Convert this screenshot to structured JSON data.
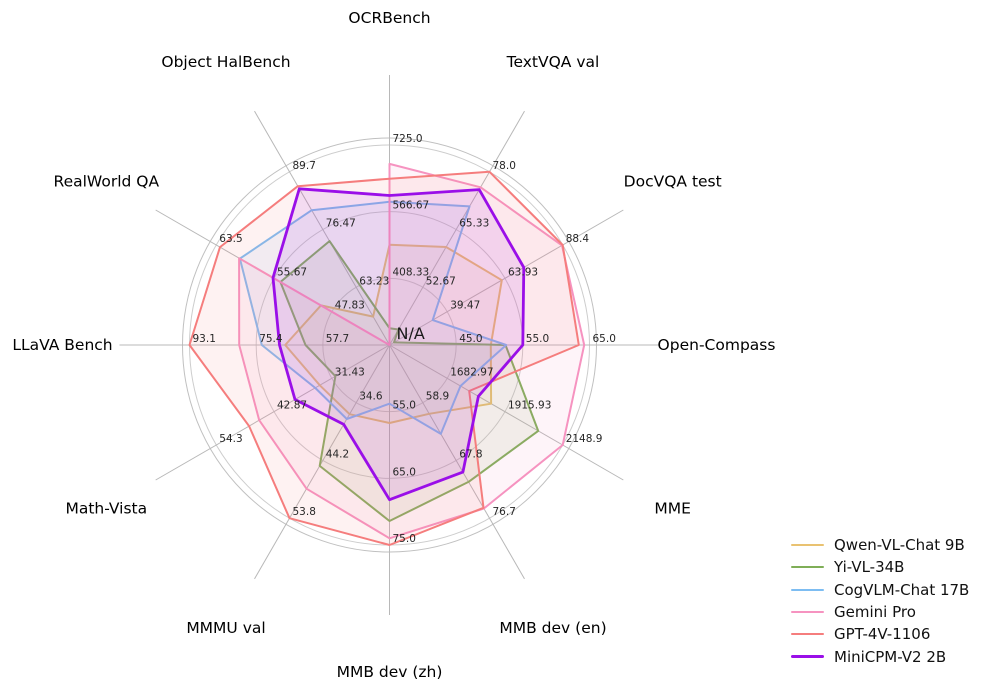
{
  "figure": {
    "background": "#ffffff",
    "grid_ring_color": "#cdcdcd",
    "spine_color": "#c0c0c0",
    "spoke_color": "#b8b8b8",
    "tick_label_color": "#262626",
    "axis_label_color": "#000000"
  },
  "chart_data": {
    "type": "radar",
    "title": "",
    "na_label": "N/A",
    "legend_position": "bottom-right",
    "rings_per_axis": 3,
    "axes": [
      {
        "label": "OCRBench",
        "ticks": [
          "408.33",
          "566.67",
          "725.0"
        ]
      },
      {
        "label": "TextVQA val",
        "ticks": [
          "52.67",
          "65.33",
          "78.0"
        ]
      },
      {
        "label": "DocVQA test",
        "ticks": [
          "39.47",
          "63.93",
          "88.4"
        ]
      },
      {
        "label": "Open-Compass",
        "ticks": [
          "45.0",
          "55.0",
          "65.0"
        ]
      },
      {
        "label": "MME",
        "ticks": [
          "1682.97",
          "1915.93",
          "2148.9"
        ]
      },
      {
        "label": "MMB dev (en)",
        "ticks": [
          "58.9",
          "67.8",
          "76.7"
        ]
      },
      {
        "label": "MMB dev (zh)",
        "ticks": [
          "55.0",
          "65.0",
          "75.0"
        ]
      },
      {
        "label": "MMMU val",
        "ticks": [
          "34.6",
          "44.2",
          "53.8"
        ]
      },
      {
        "label": "Math-Vista",
        "ticks": [
          "31.43",
          "42.87",
          "54.3"
        ]
      },
      {
        "label": "LLaVA Bench",
        "ticks": [
          "57.7",
          "75.4",
          "93.1"
        ]
      },
      {
        "label": "RealWorld QA",
        "ticks": [
          "47.83",
          "55.67",
          "63.5"
        ]
      },
      {
        "label": "Object HalBench",
        "ticks": [
          "63.23",
          "76.47",
          "89.7"
        ]
      }
    ],
    "series": [
      {
        "name": "Qwen-VL-Chat 9B",
        "color": "#e9c271",
        "line_width": 2,
        "values": [
          488,
          61.5,
          62.6,
          50.2,
          1860.0,
          60.6,
          56.7,
          36.5,
          33.8,
          67.7,
          49.3,
          56.5
        ]
      },
      {
        "name": "Yi-VL-34B",
        "color": "#7fae57",
        "line_width": 2,
        "values": [
          290,
          43.4,
          16.9,
          52.4,
          2050.2,
          71.1,
          71.4,
          45.1,
          30.7,
          62.3,
          54.8,
          73.8
        ]
      },
      {
        "name": "CogVLM-Chat 17B",
        "color": "#7dbdf2",
        "line_width": 2,
        "values": [
          590,
          70.4,
          33.3,
          52.5,
          1736.6,
          63.7,
          53.8,
          37.3,
          34.7,
          73.9,
          60.3,
          80.9
        ]
      },
      {
        "name": "Gemini Pro",
        "color": "#f693c0",
        "line_width": 2,
        "values": [
          680,
          74.6,
          88.1,
          64.2,
          2148.9,
          75.2,
          74.0,
          48.9,
          45.8,
          79.9,
          60.4,
          null
        ]
      },
      {
        "name": "GPT-4V-1106",
        "color": "#f57d7d",
        "line_width": 2,
        "values": [
          645,
          78.0,
          88.4,
          63.4,
          1771.5,
          75.1,
          75.0,
          53.8,
          47.8,
          93.1,
          63.0,
          86.4
        ]
      },
      {
        "name": "MiniCPM-V2 2B",
        "color": "#9a0fe8",
        "line_width": 2.8,
        "values": [
          605,
          74.1,
          71.9,
          55.0,
          1808.6,
          69.6,
          68.2,
          38.2,
          38.7,
          69.2,
          55.8,
          85.8
        ]
      }
    ]
  }
}
